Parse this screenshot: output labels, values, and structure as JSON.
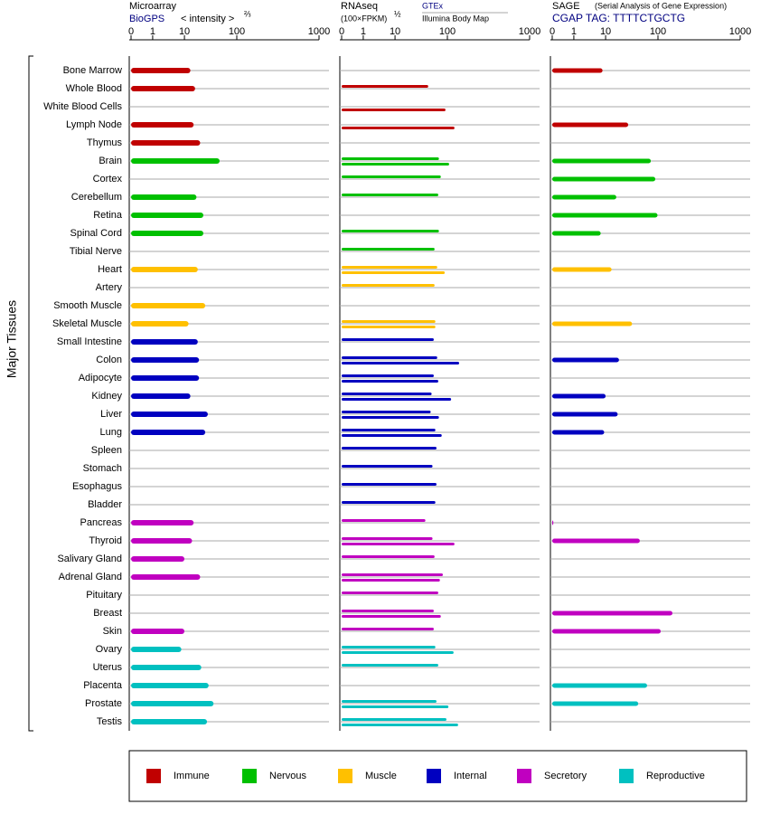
{
  "y_label": "Major Tissues",
  "tissues": [
    "Bone Marrow",
    "Whole Blood",
    "White Blood Cells",
    "Lymph Node",
    "Thymus",
    "Brain",
    "Cortex",
    "Cerebellum",
    "Retina",
    "Spinal Cord",
    "Tibial Nerve",
    "Heart",
    "Artery",
    "Smooth Muscle",
    "Skeletal Muscle",
    "Small Intestine",
    "Colon",
    "Adipocyte",
    "Kidney",
    "Liver",
    "Lung",
    "Spleen",
    "Stomach",
    "Esophagus",
    "Bladder",
    "Pancreas",
    "Thyroid",
    "Salivary Gland",
    "Adrenal Gland",
    "Pituitary",
    "Breast",
    "Skin",
    "Ovary",
    "Uterus",
    "Placenta",
    "Prostate",
    "Testis"
  ],
  "tissue_group": [
    0,
    0,
    0,
    0,
    0,
    1,
    1,
    1,
    1,
    1,
    1,
    2,
    2,
    2,
    2,
    3,
    3,
    3,
    3,
    3,
    3,
    3,
    3,
    3,
    3,
    4,
    4,
    4,
    4,
    4,
    4,
    4,
    5,
    5,
    5,
    5,
    5
  ],
  "groups": [
    {
      "name": "Immune",
      "color": "#c00000"
    },
    {
      "name": "Nervous",
      "color": "#00c000"
    },
    {
      "name": "Muscle",
      "color": "#ffc000"
    },
    {
      "name": "Internal",
      "color": "#0000c0"
    },
    {
      "name": "Secretory",
      "color": "#c000c0"
    },
    {
      "name": "Reproductive",
      "color": "#00c0c0"
    }
  ],
  "chart_data": [
    {
      "type": "bar",
      "title": "Microarray",
      "subtitle": "BioGPS",
      "x_label": "< intensity >",
      "x_label_exponent": "⅔",
      "xlim": [
        0,
        1000
      ],
      "xticks": [
        0,
        1,
        10,
        100,
        1000
      ],
      "grid": true,
      "values": [
        13,
        16,
        null,
        15,
        20,
        47,
        null,
        17,
        23,
        23,
        null,
        18,
        null,
        25,
        12,
        18,
        19,
        19,
        13,
        28,
        25,
        null,
        null,
        null,
        null,
        15,
        14,
        10,
        20,
        null,
        null,
        10,
        8,
        21,
        29,
        36,
        27
      ]
    },
    {
      "type": "bar",
      "title": "RNAseq",
      "x_label": "(100×FPKM)",
      "x_label_exponent": "½",
      "xlim": [
        0,
        1000
      ],
      "xticks": [
        0,
        1,
        10,
        100,
        1000
      ],
      "grid": true,
      "series": [
        {
          "name": "GTEx",
          "values": [
            null,
            43,
            null,
            null,
            null,
            69,
            75,
            67,
            null,
            69,
            57,
            64,
            57,
            null,
            59,
            55,
            64,
            55,
            50,
            48,
            59,
            62,
            52,
            62,
            59,
            38,
            52,
            57,
            82,
            67,
            55,
            55,
            59,
            67,
            null,
            62,
            96
          ]
        },
        {
          "name": "Illumina Body Map",
          "values": [
            null,
            null,
            92,
            122,
            null,
            105,
            null,
            null,
            null,
            null,
            null,
            89,
            null,
            null,
            59,
            null,
            139,
            67,
            111,
            69,
            78,
            null,
            null,
            null,
            null,
            null,
            122,
            null,
            72,
            null,
            75,
            null,
            119,
            null,
            null,
            103,
            135
          ]
        }
      ]
    },
    {
      "type": "bar",
      "title": "SAGE",
      "subtitle": "(Serial Analysis of Gene Expression)",
      "tag": "CGAP TAG: TTTTCTGCTG",
      "xlim": [
        0,
        1000
      ],
      "xticks": [
        0,
        1,
        10,
        100,
        1000
      ],
      "grid": true,
      "values": [
        8,
        null,
        null,
        27,
        null,
        73,
        89,
        16,
        98,
        7,
        null,
        13,
        null,
        null,
        32,
        null,
        18,
        null,
        10,
        17,
        9,
        null,
        null,
        null,
        null,
        0.05,
        45,
        null,
        null,
        null,
        150,
        108,
        null,
        null,
        62,
        42,
        null
      ]
    }
  ]
}
